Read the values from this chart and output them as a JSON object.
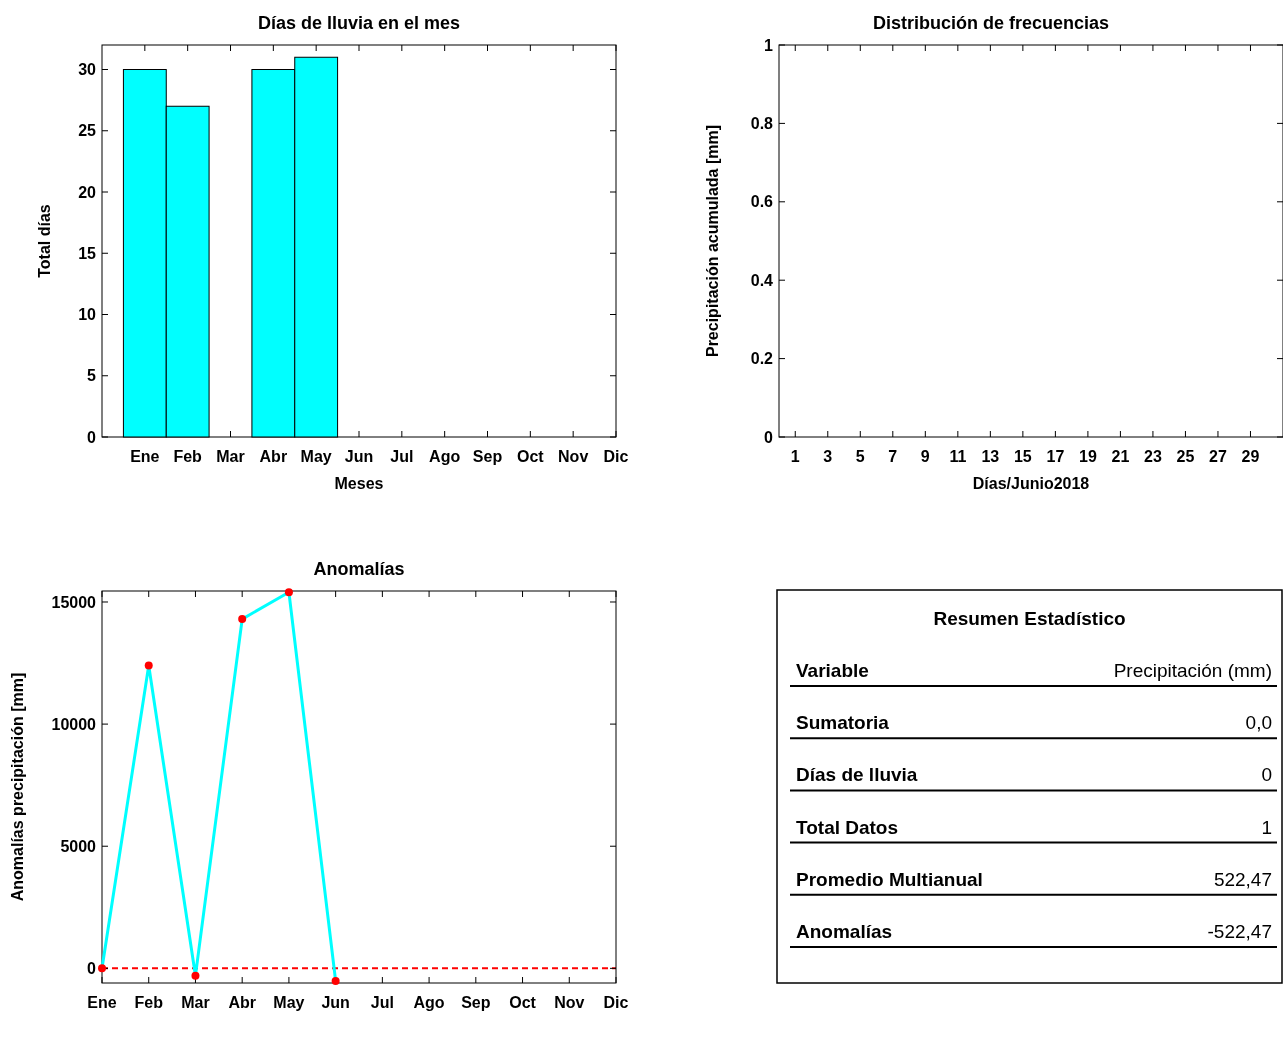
{
  "chart_data": [
    {
      "type": "bar",
      "title": "Días de lluvia en el mes",
      "xlabel": "Meses",
      "ylabel": "Total días",
      "categories": [
        "Ene",
        "Feb",
        "Mar",
        "Abr",
        "May",
        "Jun",
        "Jul",
        "Ago",
        "Sep",
        "Oct",
        "Nov",
        "Dic"
      ],
      "series": [
        {
          "color": "#00ffff",
          "values": [
            30,
            27,
            0,
            30,
            31,
            null,
            null,
            null,
            null,
            null,
            null,
            null
          ]
        }
      ],
      "ylim": [
        0,
        32
      ],
      "yticks": [
        0,
        5,
        10,
        15,
        20,
        25,
        30
      ],
      "grid": false
    },
    {
      "type": "bar",
      "title": "Distribución de frecuencias",
      "xlabel": "Días/Junio2018",
      "ylabel": "Precipitación acumulada [mm]",
      "xlim": [
        0,
        31
      ],
      "xticks": [
        1,
        3,
        5,
        7,
        9,
        11,
        13,
        15,
        17,
        19,
        21,
        23,
        25,
        27,
        29
      ],
      "ylim": [
        0,
        1
      ],
      "yticks": [
        0,
        0.2,
        0.4,
        0.6,
        0.8,
        1
      ],
      "grid": false
    },
    {
      "type": "line",
      "title": "Anomalías",
      "ylabel": "Anomalías precipitación [mm]",
      "categories": [
        "Ene",
        "Feb",
        "Mar",
        "Abr",
        "May",
        "Jun",
        "Jul",
        "Ago",
        "Sep",
        "Oct",
        "Nov",
        "Dic"
      ],
      "series": [
        {
          "color": "#00ffff",
          "colors": [
            "#ff0000",
            "#ff0000",
            "#ff0000",
            "#ff0000",
            "#ff0000",
            "#ff0000",
            null,
            null,
            null,
            null,
            null,
            null
          ],
          "values": [
            0,
            12400,
            -300,
            14300,
            15400,
            -520,
            null,
            null,
            null,
            null,
            null,
            null
          ]
        }
      ],
      "marker": "circle",
      "line_style": "solid",
      "ylim": [
        -600,
        15450
      ],
      "yticks": [
        0,
        5000,
        10000,
        15000
      ],
      "grid": false,
      "ref_lines": [
        {
          "axis": "y",
          "value": 0,
          "color": "#ff0000",
          "line_style": "dashed"
        }
      ]
    },
    {
      "type": "other",
      "title": "Resumen Estadístico",
      "annotations": [
        "Variable",
        "Precipitación (mm)",
        "Sumatoria",
        "0,0",
        "Días de lluvia",
        "0",
        "Total Datos",
        "1",
        "Promedio Multianual",
        "522,47",
        "Anomalías",
        "-522,47"
      ]
    }
  ]
}
